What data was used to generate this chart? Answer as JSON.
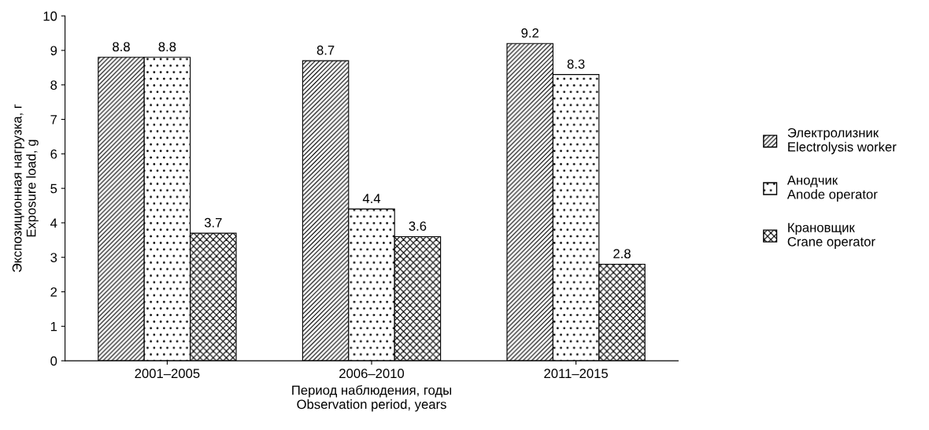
{
  "chart_data": {
    "type": "bar",
    "categories": [
      "2001–2005",
      "2006–2010",
      "2011–2015"
    ],
    "series": [
      {
        "name": "Электролизник\nElectrolysis worker",
        "color": "#000000",
        "values": [
          8.8,
          8.7,
          9.2
        ]
      },
      {
        "name": "Анодчик\nAnode operator",
        "color": "#000000",
        "values": [
          8.8,
          4.4,
          8.3
        ]
      },
      {
        "name": "Крановщик\nCrane operator",
        "color": "#000000",
        "values": [
          3.7,
          3.6,
          2.8
        ]
      }
    ],
    "xlabel": "Период наблюдения, годы\nObservation period, years",
    "ylabel": "Экспозиционная нагрузка, г\nExposure load, g",
    "ylim": [
      0,
      10
    ],
    "yticks": [
      0,
      1,
      2,
      3,
      4,
      5,
      6,
      7,
      8,
      9,
      10
    ],
    "data_labels": true,
    "grid": false,
    "legend": "right"
  }
}
